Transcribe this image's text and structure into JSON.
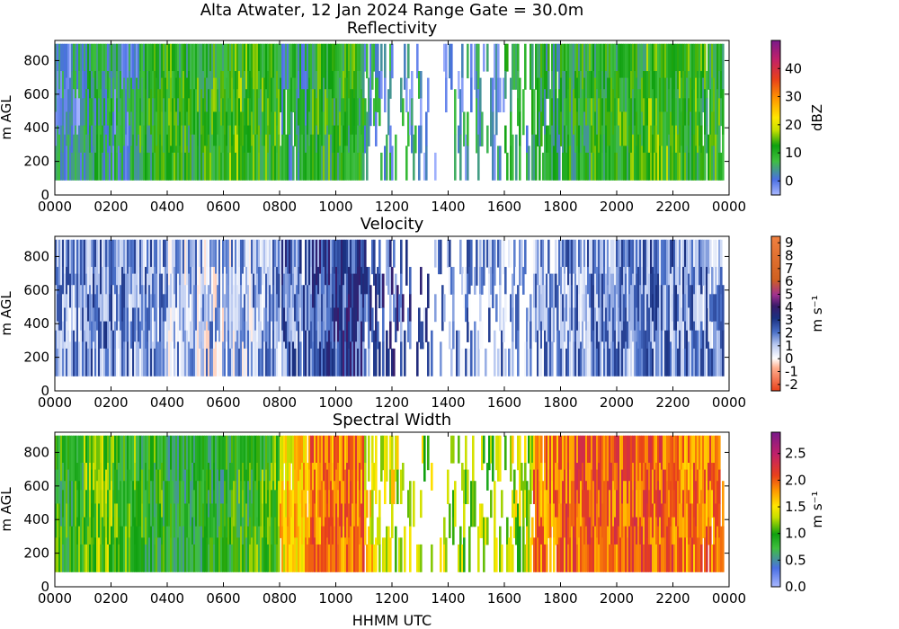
{
  "figure": {
    "title": "Alta Atwater, 12 Jan 2024 Range Gate = 30.0m",
    "xlabel": "HHMM UTC"
  },
  "chart_data": [
    {
      "type": "heatmap",
      "title": "Reflectivity",
      "xlabel": "HHMM UTC",
      "ylabel": "m AGL",
      "x_ticks": [
        "0000",
        "0200",
        "0400",
        "0600",
        "0800",
        "1000",
        "1200",
        "1400",
        "1600",
        "1800",
        "2000",
        "2200",
        "0000"
      ],
      "x_range_hours": [
        0,
        24
      ],
      "y_ticks": [
        0,
        200,
        400,
        600,
        800
      ],
      "ylim": [
        0,
        920
      ],
      "data_height_range": [
        90,
        900
      ],
      "colorbar": {
        "label": "dBZ",
        "range": [
          -5,
          50
        ],
        "ticks": [
          0,
          10,
          20,
          30,
          40
        ],
        "stops": [
          [
            "#a9b8ff",
            0
          ],
          [
            "#4a6fe3",
            0.1
          ],
          [
            "#3fbf3f",
            0.22
          ],
          [
            "#0fa00f",
            0.32
          ],
          [
            "#c8e000",
            0.42
          ],
          [
            "#ffe600",
            0.5
          ],
          [
            "#ff9900",
            0.62
          ],
          [
            "#e8401a",
            0.75
          ],
          [
            "#c0206a",
            0.88
          ],
          [
            "#7a1a8a",
            1
          ]
        ]
      },
      "time_series": {
        "hours": [
          0,
          1,
          2,
          3,
          4,
          5,
          6,
          7,
          8,
          9,
          10,
          11,
          12,
          13,
          14,
          15,
          16,
          17,
          18,
          19,
          20,
          21,
          22,
          23
        ],
        "typical_dbz": [
          2,
          6,
          4,
          10,
          10,
          11,
          12,
          11,
          6,
          10,
          10,
          4,
          2,
          1,
          2,
          2,
          7,
          8,
          9,
          10,
          11,
          12,
          11,
          10
        ],
        "coverage": [
          1,
          1,
          1,
          1,
          1,
          1,
          1,
          1,
          0.9,
          1,
          1,
          0.6,
          0.35,
          0.2,
          0.4,
          0.4,
          0.5,
          0.9,
          1,
          1,
          1,
          1,
          1,
          0.9
        ]
      }
    },
    {
      "type": "heatmap",
      "title": "Velocity",
      "xlabel": "HHMM UTC",
      "ylabel": "m AGL",
      "x_ticks": [
        "0000",
        "0200",
        "0400",
        "0600",
        "0800",
        "1000",
        "1200",
        "1400",
        "1600",
        "1800",
        "2000",
        "2200",
        "0000"
      ],
      "x_range_hours": [
        0,
        24
      ],
      "y_ticks": [
        0,
        200,
        400,
        600,
        800
      ],
      "ylim": [
        0,
        920
      ],
      "data_height_range": [
        90,
        900
      ],
      "colorbar": {
        "label": "m s⁻¹",
        "range": [
          -2.5,
          9.5
        ],
        "ticks": [
          -2,
          -1,
          0,
          1,
          2,
          3,
          4,
          5,
          6,
          7,
          8,
          9
        ],
        "stops": [
          [
            "#e8401a",
            0
          ],
          [
            "#ffb090",
            0.15
          ],
          [
            "#ffffff",
            0.21
          ],
          [
            "#b8c8f0",
            0.3
          ],
          [
            "#4a70c8",
            0.38
          ],
          [
            "#1a3080",
            0.47
          ],
          [
            "#3a1a6a",
            0.55
          ],
          [
            "#a03090",
            0.62
          ],
          [
            "#d06020",
            0.72
          ],
          [
            "#f08040",
            1
          ]
        ]
      },
      "time_series": {
        "hours": [
          0,
          1,
          2,
          3,
          4,
          5,
          6,
          7,
          8,
          9,
          10,
          11,
          12,
          13,
          14,
          15,
          16,
          17,
          18,
          19,
          20,
          21,
          22,
          23
        ],
        "typical_ms": [
          1.5,
          1.8,
          1.5,
          1.5,
          1.2,
          1.0,
          1.2,
          1.3,
          2.2,
          2.6,
          2.8,
          2.5,
          2.6,
          2.0,
          1.5,
          1.5,
          1.2,
          1.4,
          1.5,
          1.6,
          1.6,
          1.8,
          1.8,
          1.7
        ],
        "coverage": [
          1,
          1,
          1,
          1,
          1,
          1,
          1,
          1,
          0.9,
          1,
          1,
          0.6,
          0.35,
          0.2,
          0.4,
          0.4,
          0.5,
          0.9,
          1,
          1,
          1,
          1,
          1,
          0.9
        ]
      }
    },
    {
      "type": "heatmap",
      "title": "Spectral Width",
      "xlabel": "HHMM UTC",
      "ylabel": "m AGL",
      "x_ticks": [
        "0000",
        "0200",
        "0400",
        "0600",
        "0800",
        "1000",
        "1200",
        "1400",
        "1600",
        "1800",
        "2000",
        "2200",
        "0000"
      ],
      "x_range_hours": [
        0,
        24
      ],
      "y_ticks": [
        0,
        200,
        400,
        600,
        800
      ],
      "ylim": [
        0,
        920
      ],
      "data_height_range": [
        90,
        900
      ],
      "colorbar": {
        "label": "m s⁻¹",
        "range": [
          0,
          2.9
        ],
        "ticks": [
          0.0,
          0.5,
          1.0,
          1.5,
          2.0,
          2.5
        ],
        "stops": [
          [
            "#a9b8ff",
            0
          ],
          [
            "#4a6fe3",
            0.12
          ],
          [
            "#3fbf3f",
            0.25
          ],
          [
            "#0fa00f",
            0.34
          ],
          [
            "#c8e000",
            0.45
          ],
          [
            "#ffe600",
            0.52
          ],
          [
            "#ff9900",
            0.62
          ],
          [
            "#e8401a",
            0.72
          ],
          [
            "#c0206a",
            0.86
          ],
          [
            "#7a1a8a",
            1
          ]
        ]
      },
      "time_series": {
        "hours": [
          0,
          1,
          2,
          3,
          4,
          5,
          6,
          7,
          8,
          9,
          10,
          11,
          12,
          13,
          14,
          15,
          16,
          17,
          18,
          19,
          20,
          21,
          22,
          23
        ],
        "typical_ms": [
          0.9,
          1.1,
          1.0,
          0.9,
          0.8,
          0.8,
          0.9,
          1.0,
          1.6,
          1.9,
          1.9,
          1.5,
          1.4,
          1.3,
          1.2,
          1.2,
          1.3,
          1.9,
          2.0,
          2.0,
          2.0,
          2.0,
          1.9,
          1.9
        ],
        "coverage": [
          1,
          1,
          1,
          1,
          1,
          1,
          1,
          1,
          0.9,
          1,
          1,
          0.6,
          0.35,
          0.2,
          0.4,
          0.4,
          0.5,
          0.9,
          1,
          1,
          1,
          1,
          1,
          0.9
        ]
      }
    }
  ]
}
